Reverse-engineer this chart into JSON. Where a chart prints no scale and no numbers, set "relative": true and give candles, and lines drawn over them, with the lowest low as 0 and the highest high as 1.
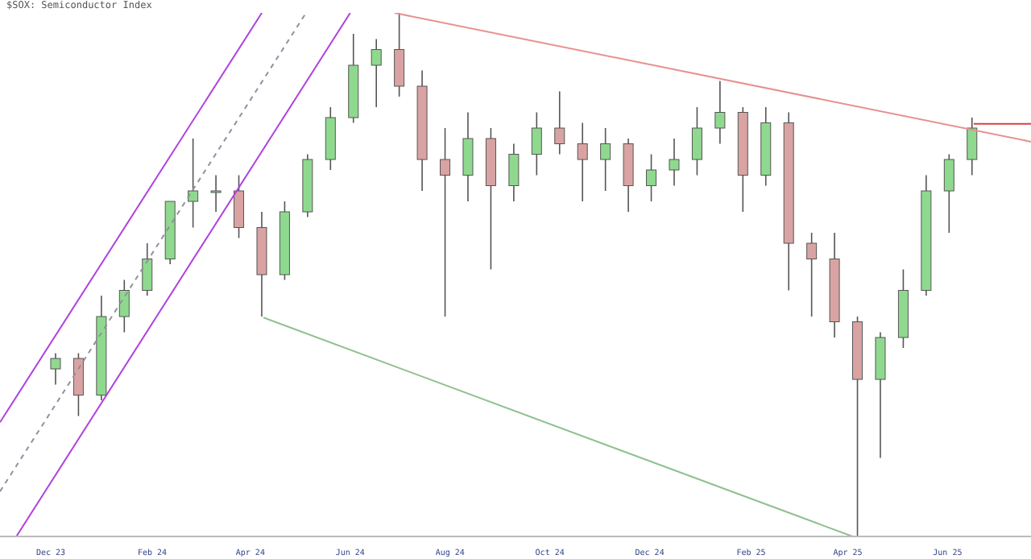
{
  "chart_data": {
    "type": "candlestick",
    "title": "$SOX: Semiconductor Index",
    "relative": true,
    "x": [
      "2023-12-04",
      "2023-12-18",
      "2024-01-01",
      "2024-01-15",
      "2024-01-29",
      "2024-02-12",
      "2024-02-26",
      "2024-03-11",
      "2024-03-25",
      "2024-04-08",
      "2024-04-22",
      "2024-05-06",
      "2024-05-20",
      "2024-06-03",
      "2024-06-17",
      "2024-07-01",
      "2024-07-15",
      "2024-07-29",
      "2024-08-12",
      "2024-08-26",
      "2024-09-09",
      "2024-09-23",
      "2024-10-07",
      "2024-10-21",
      "2024-11-04",
      "2024-11-18",
      "2024-12-02",
      "2024-12-16",
      "2024-12-30",
      "2025-01-13",
      "2025-01-27",
      "2025-02-10",
      "2025-02-24",
      "2025-03-10",
      "2025-03-24",
      "2025-04-07",
      "2025-04-21",
      "2025-05-05",
      "2025-05-19",
      "2025-06-02",
      "2025-06-16"
    ],
    "ohlc": [
      [
        0.32,
        0.35,
        0.29,
        0.34
      ],
      [
        0.34,
        0.35,
        0.23,
        0.27
      ],
      [
        0.27,
        0.46,
        0.26,
        0.42
      ],
      [
        0.42,
        0.49,
        0.39,
        0.47
      ],
      [
        0.47,
        0.56,
        0.46,
        0.53
      ],
      [
        0.53,
        0.64,
        0.52,
        0.64
      ],
      [
        0.64,
        0.76,
        0.59,
        0.66
      ],
      [
        0.66,
        0.69,
        0.62,
        0.66
      ],
      [
        0.66,
        0.69,
        0.57,
        0.59
      ],
      [
        0.59,
        0.62,
        0.42,
        0.5
      ],
      [
        0.5,
        0.64,
        0.49,
        0.62
      ],
      [
        0.62,
        0.73,
        0.61,
        0.72
      ],
      [
        0.72,
        0.82,
        0.7,
        0.8
      ],
      [
        0.8,
        0.96,
        0.79,
        0.9
      ],
      [
        0.9,
        0.95,
        0.82,
        0.93
      ],
      [
        0.93,
        1.0,
        0.84,
        0.86
      ],
      [
        0.86,
        0.89,
        0.66,
        0.72
      ],
      [
        0.72,
        0.78,
        0.42,
        0.69
      ],
      [
        0.69,
        0.81,
        0.64,
        0.76
      ],
      [
        0.76,
        0.78,
        0.51,
        0.67
      ],
      [
        0.67,
        0.75,
        0.64,
        0.73
      ],
      [
        0.73,
        0.81,
        0.69,
        0.78
      ],
      [
        0.78,
        0.85,
        0.73,
        0.75
      ],
      [
        0.75,
        0.79,
        0.64,
        0.72
      ],
      [
        0.72,
        0.78,
        0.66,
        0.75
      ],
      [
        0.75,
        0.76,
        0.62,
        0.67
      ],
      [
        0.67,
        0.73,
        0.64,
        0.7
      ],
      [
        0.7,
        0.76,
        0.67,
        0.72
      ],
      [
        0.72,
        0.82,
        0.69,
        0.78
      ],
      [
        0.78,
        0.87,
        0.75,
        0.81
      ],
      [
        0.81,
        0.82,
        0.62,
        0.69
      ],
      [
        0.69,
        0.82,
        0.67,
        0.79
      ],
      [
        0.79,
        0.81,
        0.47,
        0.56
      ],
      [
        0.56,
        0.58,
        0.42,
        0.53
      ],
      [
        0.53,
        0.58,
        0.38,
        0.41
      ],
      [
        0.41,
        0.42,
        0.0,
        0.3
      ],
      [
        0.3,
        0.39,
        0.15,
        0.38
      ],
      [
        0.38,
        0.51,
        0.36,
        0.47
      ],
      [
        0.47,
        0.69,
        0.46,
        0.66
      ],
      [
        0.66,
        0.73,
        0.58,
        0.72
      ],
      [
        0.72,
        0.8,
        0.69,
        0.78
      ]
    ],
    "colors": [
      "#8fd98f",
      "#d9a3a3",
      "#8fd98f",
      "#8fd98f",
      "#8fd98f",
      "#8fd98f",
      "#8fd98f",
      "#8fd98f",
      "#d9a3a3",
      "#d9a3a3",
      "#8fd98f",
      "#8fd98f",
      "#8fd98f",
      "#8fd98f",
      "#8fd98f",
      "#d9a3a3",
      "#d9a3a3",
      "#d9a3a3",
      "#8fd98f",
      "#d9a3a3",
      "#8fd98f",
      "#8fd98f",
      "#d9a3a3",
      "#d9a3a3",
      "#8fd98f",
      "#d9a3a3",
      "#8fd98f",
      "#8fd98f",
      "#8fd98f",
      "#8fd98f",
      "#d9a3a3",
      "#8fd98f",
      "#d9a3a3",
      "#d9a3a3",
      "#d9a3a3",
      "#d9a3a3",
      "#8fd98f",
      "#8fd98f",
      "#8fd98f",
      "#8fd98f",
      "#8fd98f"
    ],
    "series": [
      {
        "type": "line",
        "color": "#b040e0",
        "x": [
          "2023-10-31",
          "2024-04-08"
        ],
        "values": [
          0.218,
          1.0
        ]
      },
      {
        "type": "line",
        "color": "#b040e0",
        "x": [
          "2023-11-10",
          "2024-06-01"
        ],
        "values": [
          0.0,
          1.0
        ]
      },
      {
        "type": "line",
        "color": "#9090a0",
        "line_style": "dashed",
        "x": [
          "2023-10-31",
          "2024-05-05"
        ],
        "values": [
          0.086,
          1.0
        ]
      },
      {
        "type": "line",
        "color": "#e89090",
        "x": [
          "2024-06-28",
          "2025-07-22"
        ],
        "values": [
          1.0,
          0.754
        ]
      },
      {
        "type": "line",
        "color": "#90c090",
        "x": [
          "2024-04-09",
          "2025-04-04"
        ],
        "values": [
          0.418,
          0.0
        ]
      },
      {
        "type": "line",
        "color": "#d84040",
        "x": [
          "2025-06-17",
          "2025-07-22"
        ],
        "values": [
          0.788,
          0.788
        ]
      }
    ],
    "xlim": [
      "2023-10-31",
      "2025-07-22"
    ],
    "xticks": [
      {
        "value": "2023-12-01",
        "label": "Dec 23"
      },
      {
        "value": "2024-02-01",
        "label": "Feb 24"
      },
      {
        "value": "2024-04-01",
        "label": "Apr 24"
      },
      {
        "value": "2024-06-01",
        "label": "Jun 24"
      },
      {
        "value": "2024-08-01",
        "label": "Aug 24"
      },
      {
        "value": "2024-10-01",
        "label": "Oct 24"
      },
      {
        "value": "2024-12-01",
        "label": "Dec 24"
      },
      {
        "value": "2025-02-01",
        "label": "Feb 25"
      },
      {
        "value": "2025-04-01",
        "label": "Apr 25"
      },
      {
        "value": "2025-06-01",
        "label": "Jun 25"
      }
    ]
  }
}
